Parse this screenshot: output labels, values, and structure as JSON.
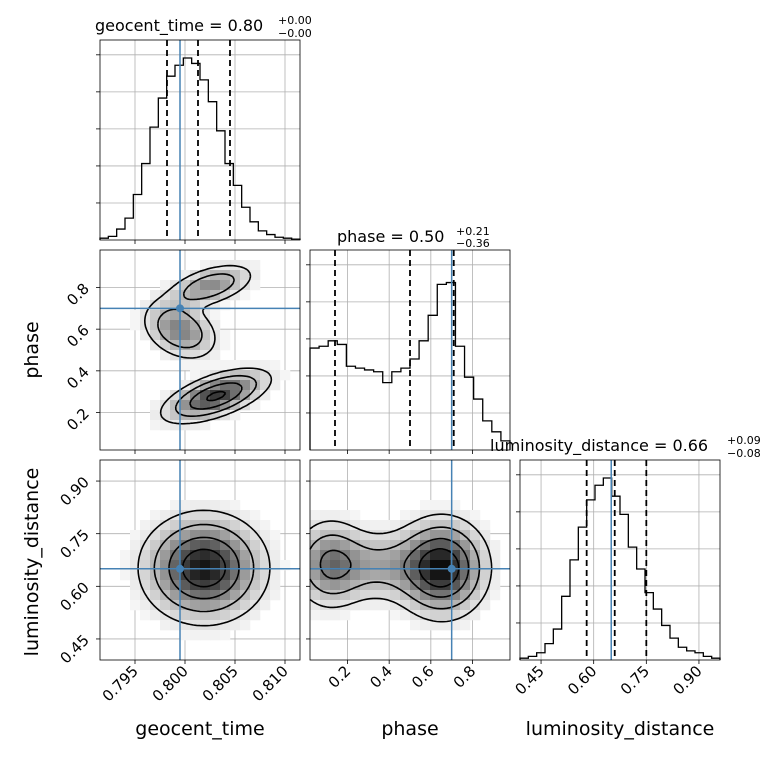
{
  "truth_color": "#4682b4",
  "chart_data": {
    "type": "corner",
    "parameters": [
      "geocent_time",
      "phase",
      "luminosity_distance"
    ],
    "truths": {
      "geocent_time": 0.7995,
      "phase": 0.7,
      "luminosity_distance": 0.65
    },
    "titles": [
      {
        "param": "geocent_time",
        "text": "geocent_time = 0.80",
        "sup": "+0.00",
        "sub": "−0.00"
      },
      {
        "param": "phase",
        "text": "phase = 0.50",
        "sup": "+0.21",
        "sub": "−0.36"
      },
      {
        "param": "luminosity_distance",
        "text": "luminosity_distance = 0.66",
        "sup": "+0.09",
        "sub": "−0.08"
      }
    ],
    "ranges": {
      "geocent_time": [
        0.7915,
        0.8115
      ],
      "phase": [
        0.02,
        0.98
      ],
      "luminosity_distance": [
        0.39,
        0.96
      ]
    },
    "ticks": {
      "geocent_time": [
        "0.795",
        "0.800",
        "0.805",
        "0.810"
      ],
      "phase": [
        "0.2",
        "0.4",
        "0.6",
        "0.8"
      ],
      "luminosity_distance": [
        "0.45",
        "0.60",
        "0.75",
        "0.90"
      ]
    },
    "axis_labels": {
      "x": [
        "geocent_time",
        "phase",
        "luminosity_distance"
      ],
      "y": [
        "phase",
        "luminosity_distance"
      ]
    },
    "quantiles": {
      "geocent_time": [
        0.7982,
        0.8013,
        0.8045
      ],
      "phase": [
        0.14,
        0.5,
        0.71
      ],
      "luminosity_distance": [
        0.58,
        0.66,
        0.75
      ]
    },
    "marginals": {
      "geocent_time": [
        0.01,
        0.02,
        0.06,
        0.12,
        0.25,
        0.42,
        0.62,
        0.78,
        0.9,
        0.96,
        1.0,
        0.97,
        0.88,
        0.76,
        0.6,
        0.42,
        0.3,
        0.18,
        0.1,
        0.05,
        0.03,
        0.015,
        0.01,
        0.005
      ],
      "phase": [
        0.56,
        0.57,
        0.6,
        0.58,
        0.46,
        0.45,
        0.44,
        0.43,
        0.37,
        0.43,
        0.45,
        0.5,
        0.6,
        0.74,
        0.91,
        0.92,
        0.57,
        0.4,
        0.28,
        0.16,
        0.1,
        0.05
      ],
      "luminosity_distance": [
        0.01,
        0.02,
        0.04,
        0.09,
        0.17,
        0.35,
        0.55,
        0.73,
        0.88,
        0.96,
        1.0,
        0.9,
        0.8,
        0.62,
        0.5,
        0.37,
        0.28,
        0.19,
        0.12,
        0.07,
        0.05,
        0.04,
        0.02,
        0.01
      ]
    },
    "grid": true,
    "contour_levels": 4
  }
}
